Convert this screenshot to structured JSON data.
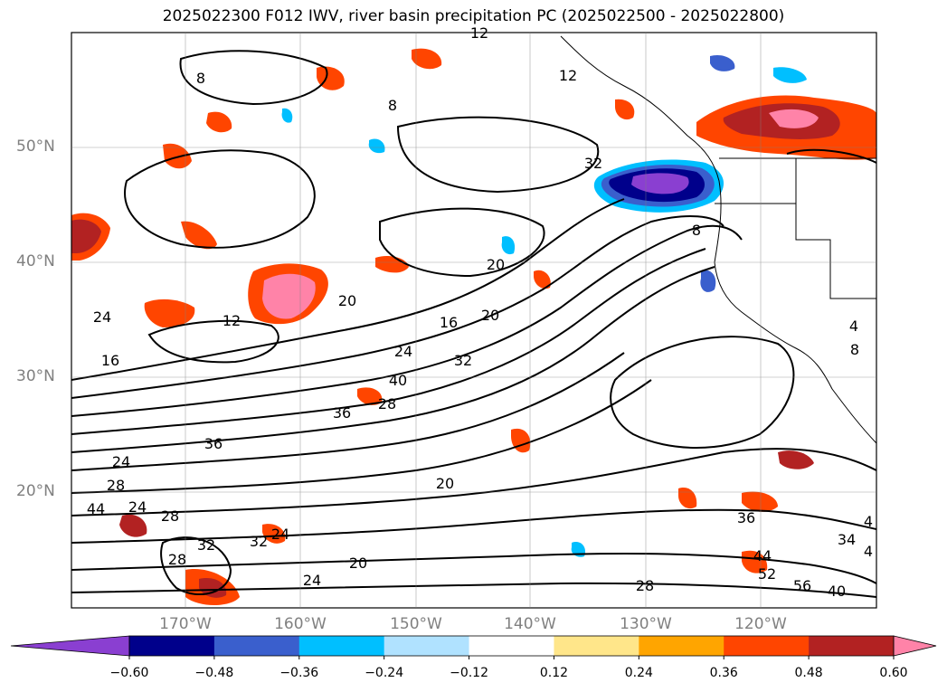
{
  "title": "2025022300 F012 IWV, river basin precipitation PC (2025022500 - 2025022800)",
  "lat_labels": [
    "50°N",
    "40°N",
    "30°N",
    "20°N"
  ],
  "lon_labels": [
    "170°W",
    "160°W",
    "150°W",
    "140°W",
    "130°W",
    "120°W"
  ],
  "colorbar": {
    "ticks": [
      "−0.60",
      "−0.48",
      "−0.36",
      "−0.24",
      "−0.12",
      "0.12",
      "0.24",
      "0.36",
      "0.48",
      "0.60"
    ],
    "colors": [
      "#8a3fd1",
      "#00008b",
      "#3a5fcd",
      "#00bfff",
      "#b0e2ff",
      "#ffffff",
      "#ffe68a",
      "#ffa500",
      "#ff4500",
      "#b22222",
      "#ff83a8"
    ]
  },
  "contour_labels": [
    "12",
    "8",
    "8",
    "12",
    "32",
    "8",
    "20",
    "20",
    "24",
    "16",
    "20",
    "12",
    "16",
    "24",
    "32",
    "40",
    "28",
    "36",
    "36",
    "24",
    "28",
    "24",
    "28",
    "32",
    "28",
    "32",
    "24",
    "20",
    "20",
    "24",
    "44",
    "28",
    "36",
    "44",
    "52",
    "56",
    "40",
    "34",
    "4",
    "4",
    "4",
    "8"
  ]
}
